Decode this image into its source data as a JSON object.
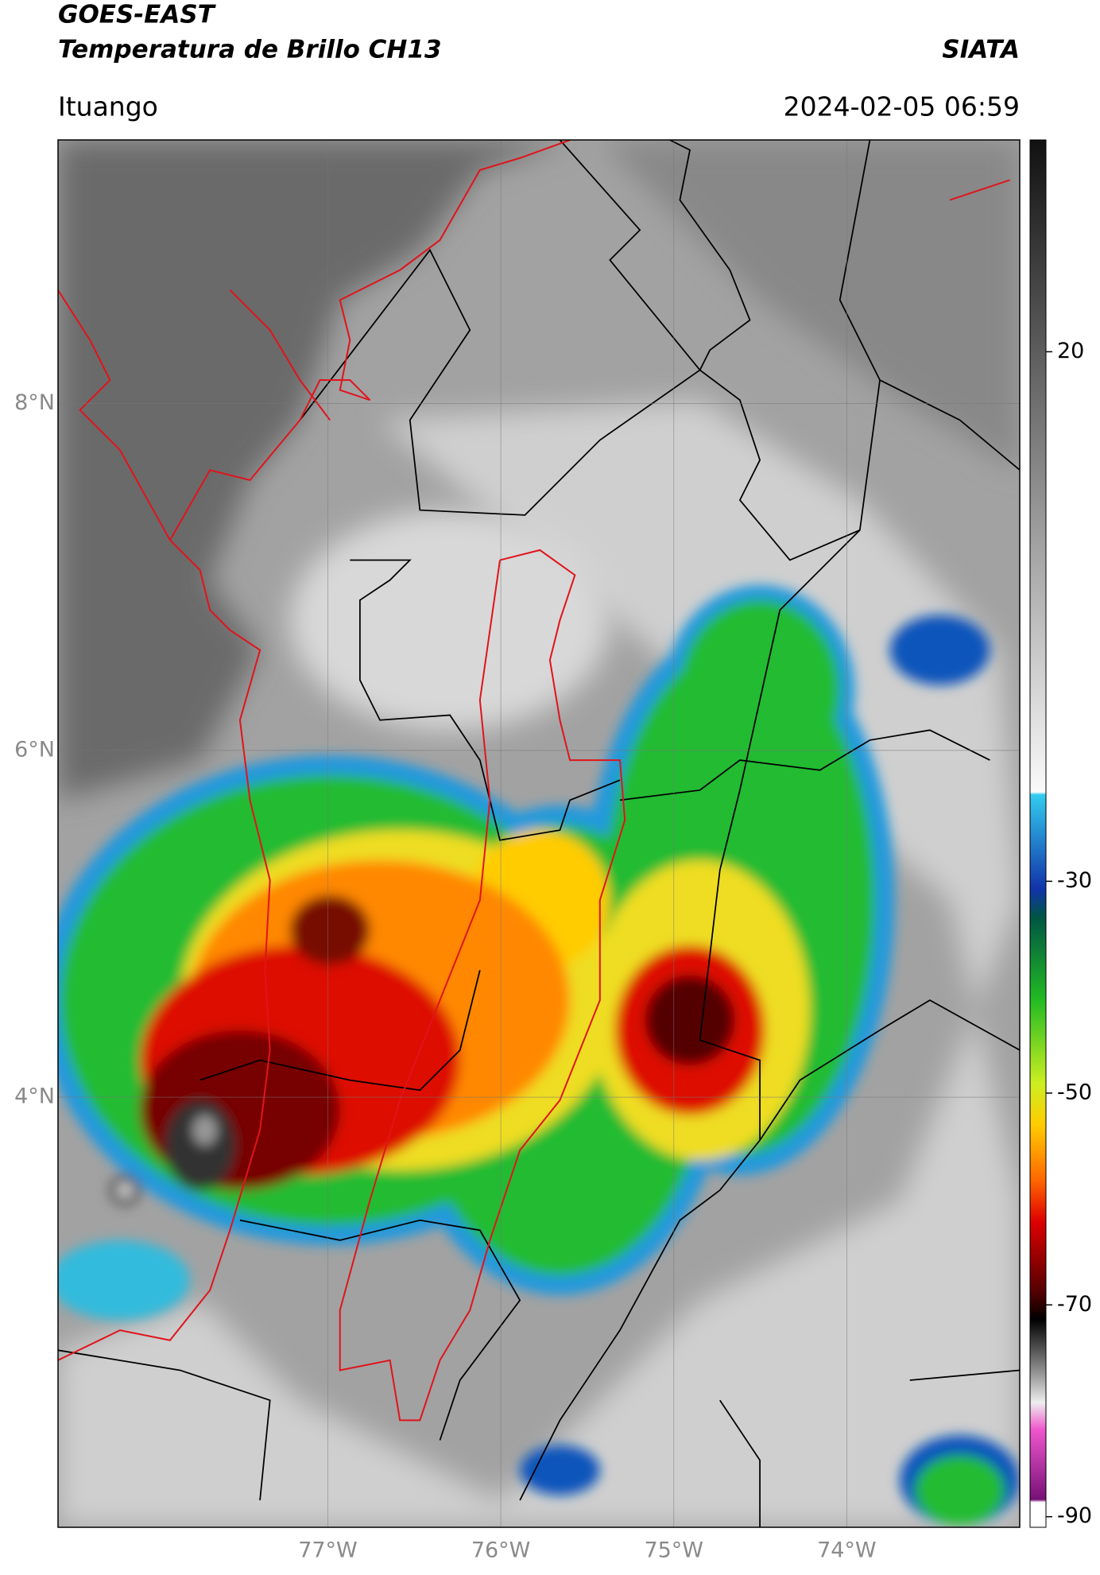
{
  "header": {
    "title": "GOES-EAST",
    "subtitle": "Temperatura de Brillo CH13",
    "brand": "SIATA",
    "location": "Ituango",
    "datetime": "2024-02-05 06:59"
  },
  "chart_data": {
    "type": "map",
    "xlim": [
      -78.56,
      -73.0
    ],
    "ylim": [
      1.52,
      9.52
    ],
    "xticks": [
      {
        "value": -77,
        "label": "77°W"
      },
      {
        "value": -76,
        "label": "76°W"
      },
      {
        "value": -75,
        "label": "75°W"
      },
      {
        "value": -74,
        "label": "74°W"
      }
    ],
    "yticks": [
      {
        "value": 8,
        "label": "8°N"
      },
      {
        "value": 6,
        "label": "6°N"
      },
      {
        "value": 4,
        "label": "4°N"
      }
    ],
    "grid": true,
    "colorbar": {
      "lim": [
        -91,
        40
      ],
      "ticks": [
        20,
        -30,
        -50,
        -70,
        -90
      ]
    }
  }
}
